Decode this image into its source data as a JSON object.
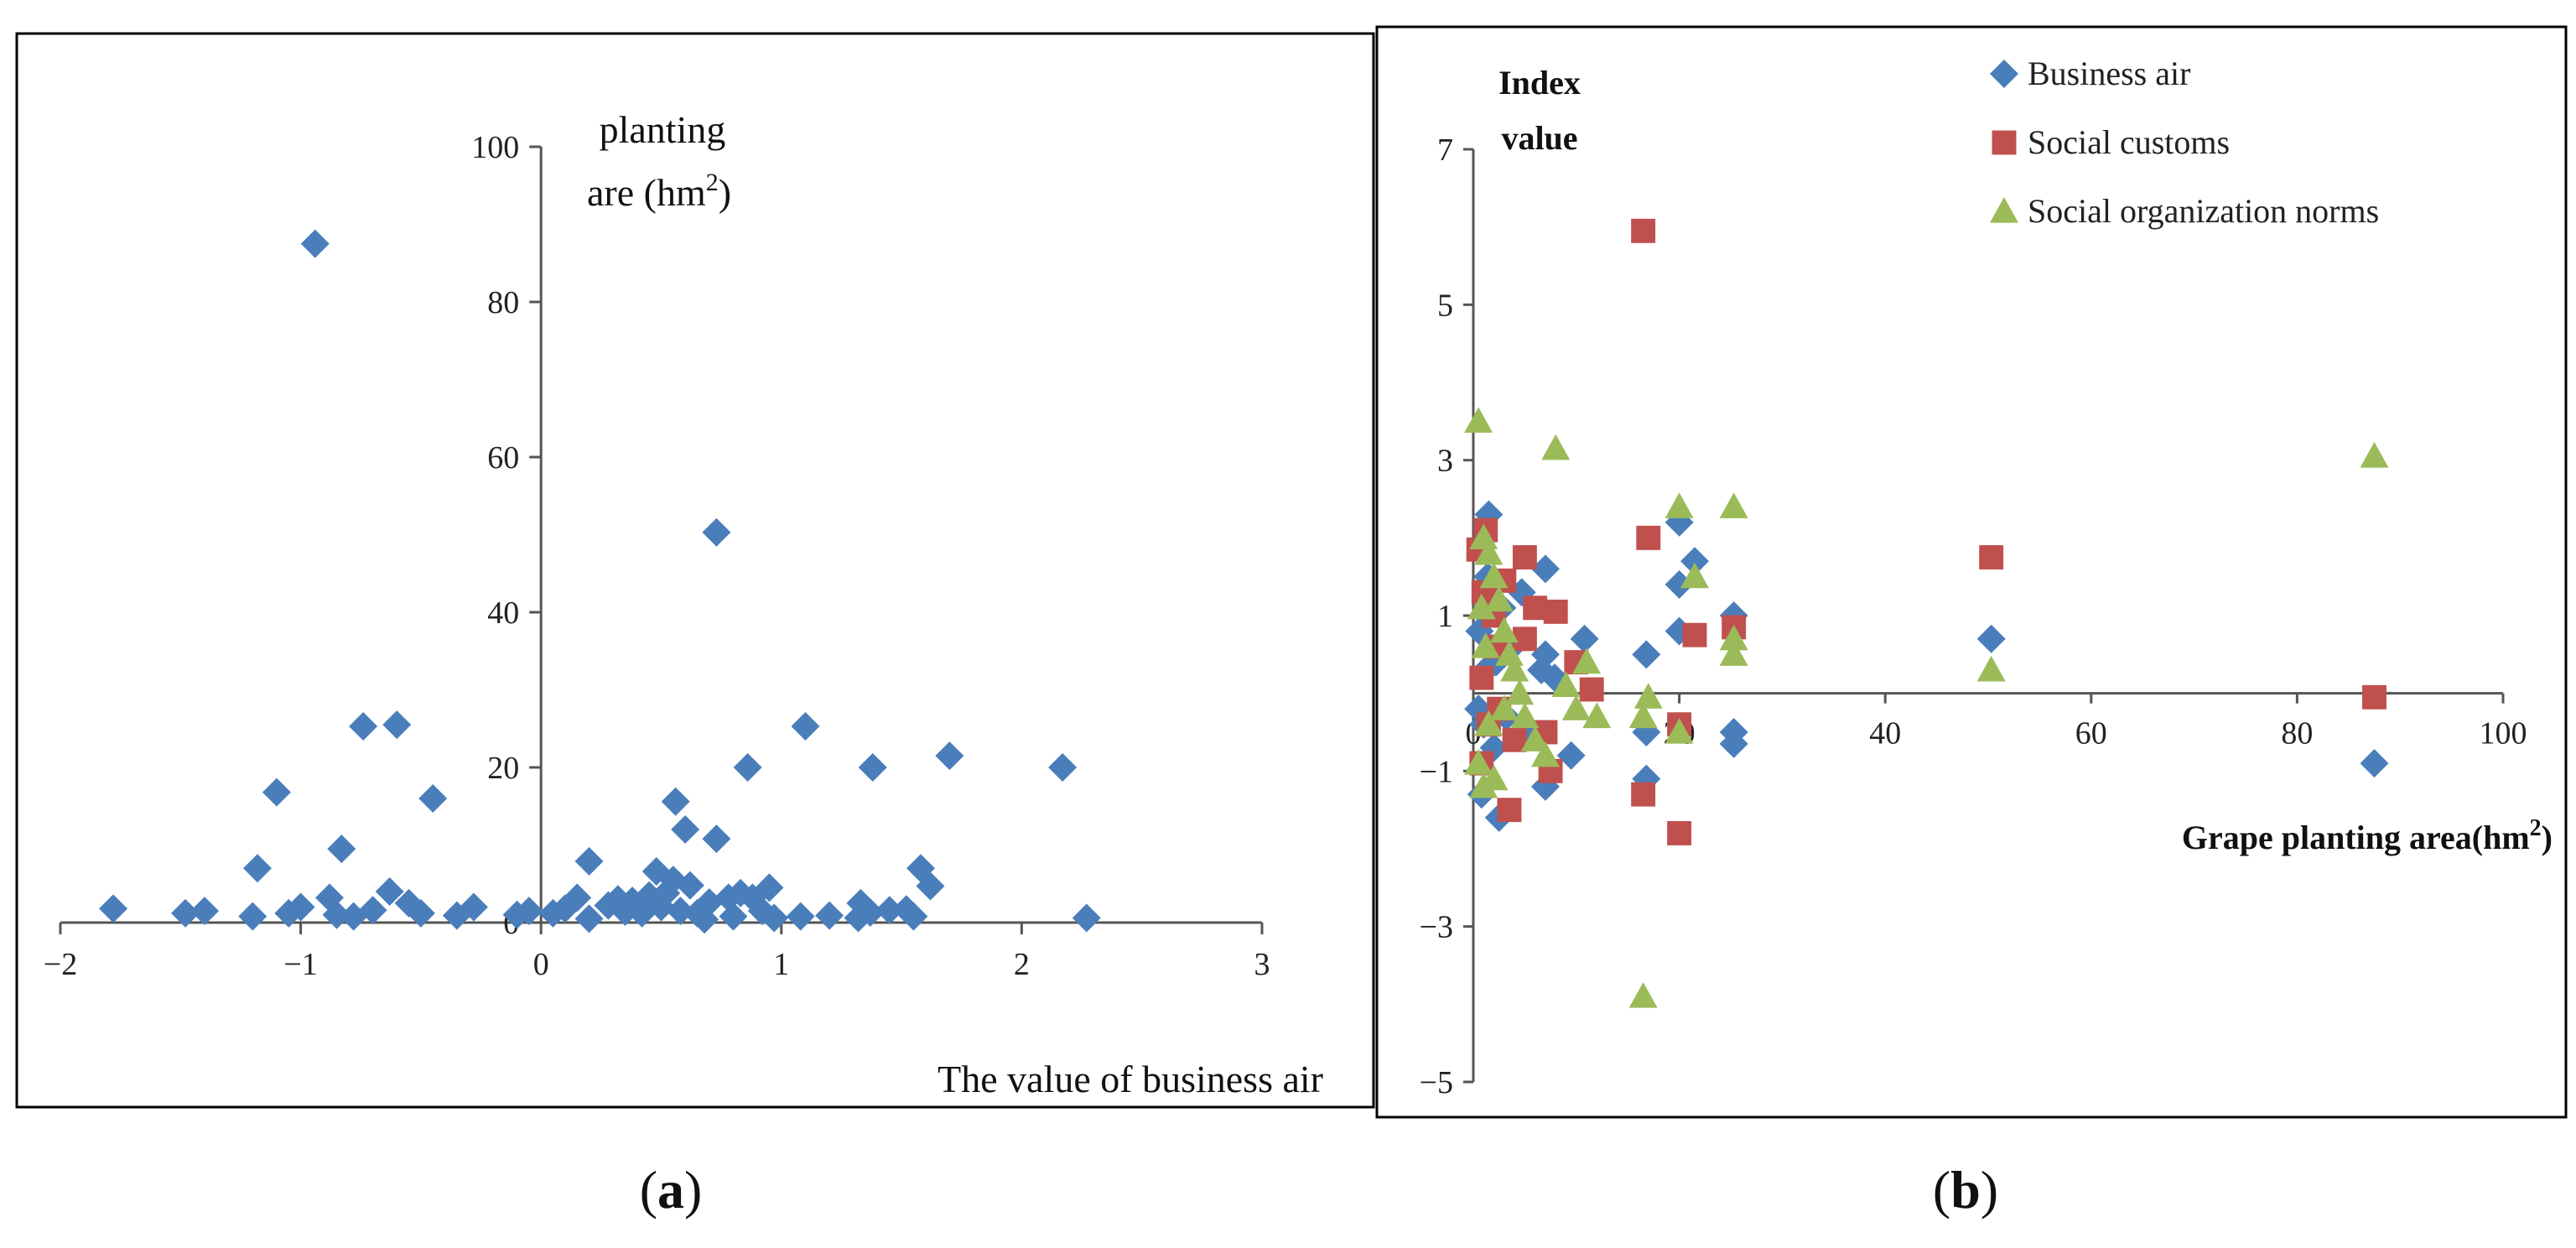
{
  "figure": {
    "panel_a_caption": "(a)",
    "panel_b_caption": "(b)",
    "caption_open": "(",
    "caption_close": ")",
    "caption_a_letter": "a",
    "caption_b_letter": "b"
  },
  "colors": {
    "business_air": "#4a7ebb",
    "social_customs": "#c0504d",
    "social_org_norms": "#9bbb59",
    "axis": "#555555",
    "frame": "#000000"
  },
  "chart_data": [
    {
      "id": "a",
      "type": "scatter",
      "title": "",
      "xlabel": "The value of business air",
      "ylabel_line1": "planting",
      "ylabel_line2": "are  (hm",
      "ylabel_sup": "2",
      "ylabel_close": ")",
      "xlim": [
        -2,
        3
      ],
      "ylim": [
        0,
        100
      ],
      "x_ticks": [
        -2,
        -1,
        0,
        1,
        2,
        3
      ],
      "x_tick_labels": [
        "−2",
        "−1",
        "0",
        "1",
        "2",
        "3"
      ],
      "y_ticks": [
        0,
        20,
        40,
        60,
        80,
        100
      ],
      "y_tick_labels": [
        "0",
        "20",
        "40",
        "60",
        "80",
        "100"
      ],
      "marker": "diamond",
      "series": [
        {
          "name": "Business air",
          "points": [
            [
              -0.94,
              87.5
            ],
            [
              0.73,
              50.3
            ],
            [
              -0.74,
              25.3
            ],
            [
              -0.6,
              25.5
            ],
            [
              1.1,
              25.3
            ],
            [
              1.7,
              21.5
            ],
            [
              2.17,
              20
            ],
            [
              0.86,
              20
            ],
            [
              1.38,
              20
            ],
            [
              -1.1,
              16.8
            ],
            [
              -0.45,
              16
            ],
            [
              0.56,
              15.6
            ],
            [
              0.6,
              12
            ],
            [
              0.73,
              10.8
            ],
            [
              -0.83,
              9.5
            ],
            [
              -1.18,
              7
            ],
            [
              0.2,
              7.9
            ],
            [
              1.58,
              7
            ],
            [
              0.48,
              6.6
            ],
            [
              1.62,
              4.7
            ],
            [
              0.55,
              5.5
            ],
            [
              0.62,
              4.8
            ],
            [
              0.52,
              3.8
            ],
            [
              0.45,
              3.5
            ],
            [
              0.38,
              2.8
            ],
            [
              0.32,
              3
            ],
            [
              0.28,
              2.2
            ],
            [
              0.35,
              1.4
            ],
            [
              0.42,
              1.2
            ],
            [
              0.5,
              2
            ],
            [
              0.58,
              1.5
            ],
            [
              0.65,
              1.2
            ],
            [
              0.7,
              2.6
            ],
            [
              0.78,
              3.2
            ],
            [
              0.83,
              3.8
            ],
            [
              0.88,
              3.2
            ],
            [
              0.95,
              4.5
            ],
            [
              0.92,
              1.5
            ],
            [
              0.97,
              0.6
            ],
            [
              0.8,
              0.8
            ],
            [
              0.68,
              0.4
            ],
            [
              0.15,
              3.2
            ],
            [
              0.1,
              1.8
            ],
            [
              0.05,
              1.2
            ],
            [
              -0.05,
              1.5
            ],
            [
              -0.1,
              1
            ],
            [
              0.2,
              0.5
            ],
            [
              -0.28,
              2
            ],
            [
              -0.35,
              0.9
            ],
            [
              -0.5,
              1.2
            ],
            [
              -0.55,
              2.5
            ],
            [
              -0.63,
              4
            ],
            [
              -0.7,
              1.6
            ],
            [
              -0.78,
              0.8
            ],
            [
              -0.85,
              1
            ],
            [
              -0.88,
              3.2
            ],
            [
              -1.0,
              2
            ],
            [
              -1.05,
              1.2
            ],
            [
              -1.2,
              0.8
            ],
            [
              -1.4,
              1.5
            ],
            [
              -1.48,
              1.2
            ],
            [
              -1.78,
              1.8
            ],
            [
              1.08,
              0.8
            ],
            [
              1.2,
              0.9
            ],
            [
              1.33,
              2.5
            ],
            [
              1.37,
              1.3
            ],
            [
              1.45,
              1.6
            ],
            [
              1.52,
              1.7
            ],
            [
              1.55,
              0.8
            ],
            [
              1.32,
              0.6
            ],
            [
              2.27,
              0.6
            ]
          ]
        }
      ]
    },
    {
      "id": "b",
      "type": "scatter",
      "title": "",
      "xlabel": "Grape planting area(hm",
      "xlabel_sup": "2",
      "xlabel_close": ")",
      "ylabel_line1": "Index",
      "ylabel_line2": "value",
      "xlim": [
        0,
        100
      ],
      "ylim": [
        -5,
        7
      ],
      "x_ticks": [
        0,
        20,
        40,
        60,
        80,
        100
      ],
      "x_tick_labels": [
        "0",
        "20",
        "40",
        "60",
        "80",
        "100"
      ],
      "y_ticks": [
        -5,
        -3,
        -1,
        1,
        3,
        5,
        7
      ],
      "y_tick_labels": [
        "−5",
        "−3",
        "−1",
        "1",
        "3",
        "5",
        "7"
      ],
      "legend_position": "top-right",
      "series": [
        {
          "name": "Business air",
          "marker": "diamond",
          "points": [
            [
              87.5,
              -0.9
            ],
            [
              50.3,
              0.7
            ],
            [
              25.3,
              1.0
            ],
            [
              25.3,
              -0.5
            ],
            [
              25.3,
              -0.65
            ],
            [
              21.5,
              1.7
            ],
            [
              20,
              2.2
            ],
            [
              20,
              1.4
            ],
            [
              20,
              0.8
            ],
            [
              16.8,
              0.5
            ],
            [
              16.8,
              -0.5
            ],
            [
              16.8,
              -1.1
            ],
            [
              10.8,
              0.7
            ],
            [
              9.5,
              -0.8
            ],
            [
              7.9,
              0.2
            ],
            [
              7,
              1.6
            ],
            [
              7,
              0.5
            ],
            [
              7,
              -1.2
            ],
            [
              6.6,
              0.3
            ],
            [
              5.5,
              -0.5
            ],
            [
              4.7,
              1.3
            ],
            [
              3.8,
              0.6
            ],
            [
              3.2,
              -0.3
            ],
            [
              2.8,
              1.1
            ],
            [
              2.5,
              -1.6
            ],
            [
              2.2,
              0.4
            ],
            [
              2,
              -0.7
            ],
            [
              1.5,
              2.3
            ],
            [
              1.4,
              1.5
            ],
            [
              1.2,
              0.3
            ],
            [
              1.0,
              -0.4
            ],
            [
              0.8,
              -1.3
            ],
            [
              0.6,
              0.8
            ],
            [
              0.5,
              -0.2
            ]
          ]
        },
        {
          "name": "Social customs",
          "marker": "square",
          "points": [
            [
              16.5,
              5.95
            ],
            [
              17,
              2.0
            ],
            [
              50.3,
              1.75
            ],
            [
              25.3,
              0.85
            ],
            [
              21.5,
              0.75
            ],
            [
              20,
              -0.4
            ],
            [
              16.5,
              -1.3
            ],
            [
              20,
              -1.8
            ],
            [
              87.5,
              -0.05
            ],
            [
              8,
              1.05
            ],
            [
              10,
              0.4
            ],
            [
              11.5,
              0.05
            ],
            [
              5,
              1.75
            ],
            [
              6,
              1.1
            ],
            [
              5,
              0.7
            ],
            [
              3,
              1.45
            ],
            [
              2,
              1.0
            ],
            [
              1.2,
              2.1
            ],
            [
              0.5,
              1.85
            ],
            [
              0.8,
              0.2
            ],
            [
              2.5,
              -0.2
            ],
            [
              4,
              -0.6
            ],
            [
              3.5,
              -1.5
            ],
            [
              1.5,
              -0.4
            ],
            [
              0.8,
              -0.9
            ],
            [
              7,
              -0.5
            ],
            [
              7.5,
              -1.0
            ],
            [
              1,
              1.3
            ],
            [
              2.2,
              0.6
            ]
          ]
        },
        {
          "name": "Social organization norms",
          "marker": "triangle",
          "points": [
            [
              87.5,
              3.05
            ],
            [
              50.3,
              0.3
            ],
            [
              25.3,
              2.4
            ],
            [
              25.3,
              0.7
            ],
            [
              25.3,
              0.5
            ],
            [
              20,
              2.4
            ],
            [
              21.5,
              1.5
            ],
            [
              20,
              -0.5
            ],
            [
              17,
              -0.05
            ],
            [
              16.5,
              -0.3
            ],
            [
              16.5,
              -3.9
            ],
            [
              8,
              3.15
            ],
            [
              0.5,
              3.5
            ],
            [
              1,
              2.0
            ],
            [
              1.5,
              1.8
            ],
            [
              2,
              1.5
            ],
            [
              2.5,
              1.2
            ],
            [
              3,
              0.8
            ],
            [
              3.5,
              0.5
            ],
            [
              4,
              0.3
            ],
            [
              4.5,
              0.0
            ],
            [
              5,
              -0.3
            ],
            [
              6,
              -0.6
            ],
            [
              7,
              -0.8
            ],
            [
              2,
              -1.1
            ],
            [
              1,
              -1.2
            ],
            [
              0.5,
              -0.9
            ],
            [
              1.5,
              -0.4
            ],
            [
              3,
              -0.2
            ],
            [
              9,
              0.1
            ],
            [
              10,
              -0.2
            ],
            [
              11,
              0.4
            ],
            [
              12,
              -0.3
            ],
            [
              1.2,
              0.6
            ],
            [
              0.8,
              1.1
            ]
          ]
        }
      ]
    }
  ]
}
